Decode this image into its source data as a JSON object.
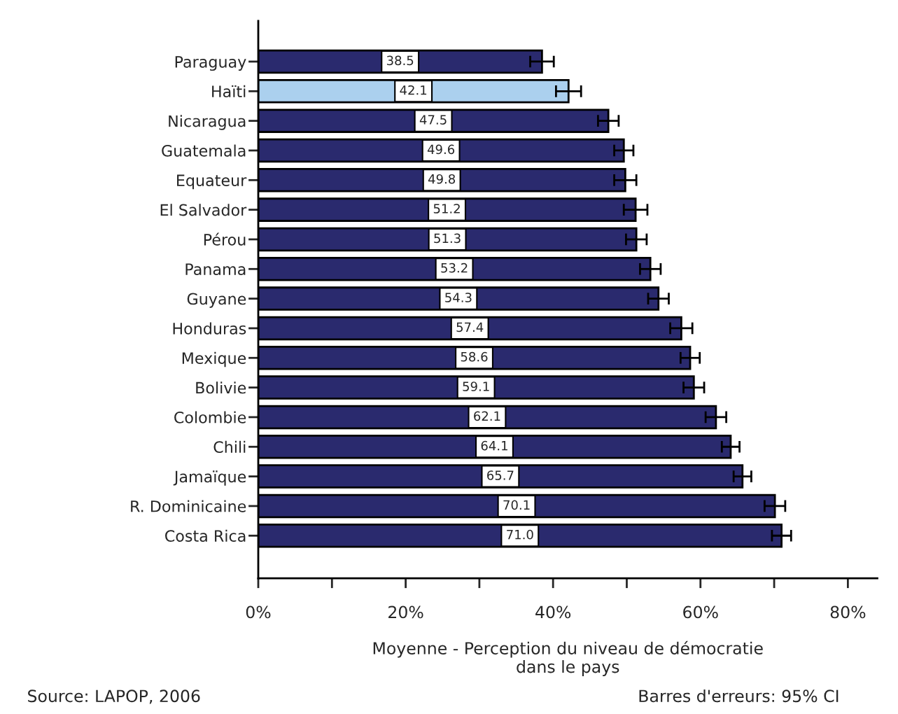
{
  "chart_data": {
    "type": "bar",
    "orientation": "horizontal",
    "xlabel": "Moyenne - Perception du niveau de démocratie\ndans le pays",
    "categories": [
      "Paraguay",
      "Haïti",
      "Nicaragua",
      "Guatemala",
      "Equateur",
      "El Salvador",
      "Pérou",
      "Panama",
      "Guyane",
      "Honduras",
      "Mexique",
      "Bolivie",
      "Colombie",
      "Chili",
      "Jamaïque",
      "R. Dominicaine",
      "Costa Rica"
    ],
    "values": [
      38.5,
      42.1,
      47.5,
      49.6,
      49.8,
      51.2,
      51.3,
      53.2,
      54.3,
      57.4,
      58.6,
      59.1,
      62.1,
      64.1,
      65.7,
      70.1,
      71.0
    ],
    "value_labels": [
      "38.5",
      "42.1",
      "47.5",
      "49.6",
      "49.8",
      "51.2",
      "51.3",
      "53.2",
      "54.3",
      "57.4",
      "58.6",
      "59.1",
      "62.1",
      "64.1",
      "65.7",
      "70.1",
      "71.0"
    ],
    "errors": [
      1.6,
      1.7,
      1.4,
      1.3,
      1.5,
      1.6,
      1.4,
      1.4,
      1.4,
      1.5,
      1.3,
      1.4,
      1.4,
      1.2,
      1.2,
      1.4,
      1.3
    ],
    "colors": [
      "#2a2a6e",
      "#abd0ee",
      "#2a2a6e",
      "#2a2a6e",
      "#2a2a6e",
      "#2a2a6e",
      "#2a2a6e",
      "#2a2a6e",
      "#2a2a6e",
      "#2a2a6e",
      "#2a2a6e",
      "#2a2a6e",
      "#2a2a6e",
      "#2a2a6e",
      "#2a2a6e",
      "#2a2a6e",
      "#2a2a6e"
    ],
    "xlim": [
      0,
      84
    ],
    "xticks": [
      {
        "value": 0,
        "label": "0%"
      },
      {
        "value": 10,
        "label": null
      },
      {
        "value": 20,
        "label": "20%"
      },
      {
        "value": 30,
        "label": null
      },
      {
        "value": 40,
        "label": "40%"
      },
      {
        "value": 50,
        "label": null
      },
      {
        "value": 60,
        "label": "60%"
      },
      {
        "value": 70,
        "label": null
      },
      {
        "value": 80,
        "label": "80%"
      }
    ],
    "grid": false,
    "legend": false,
    "annotations": [
      "Source: LAPOP, 2006",
      "Barres d'erreurs: 95% CI"
    ]
  }
}
